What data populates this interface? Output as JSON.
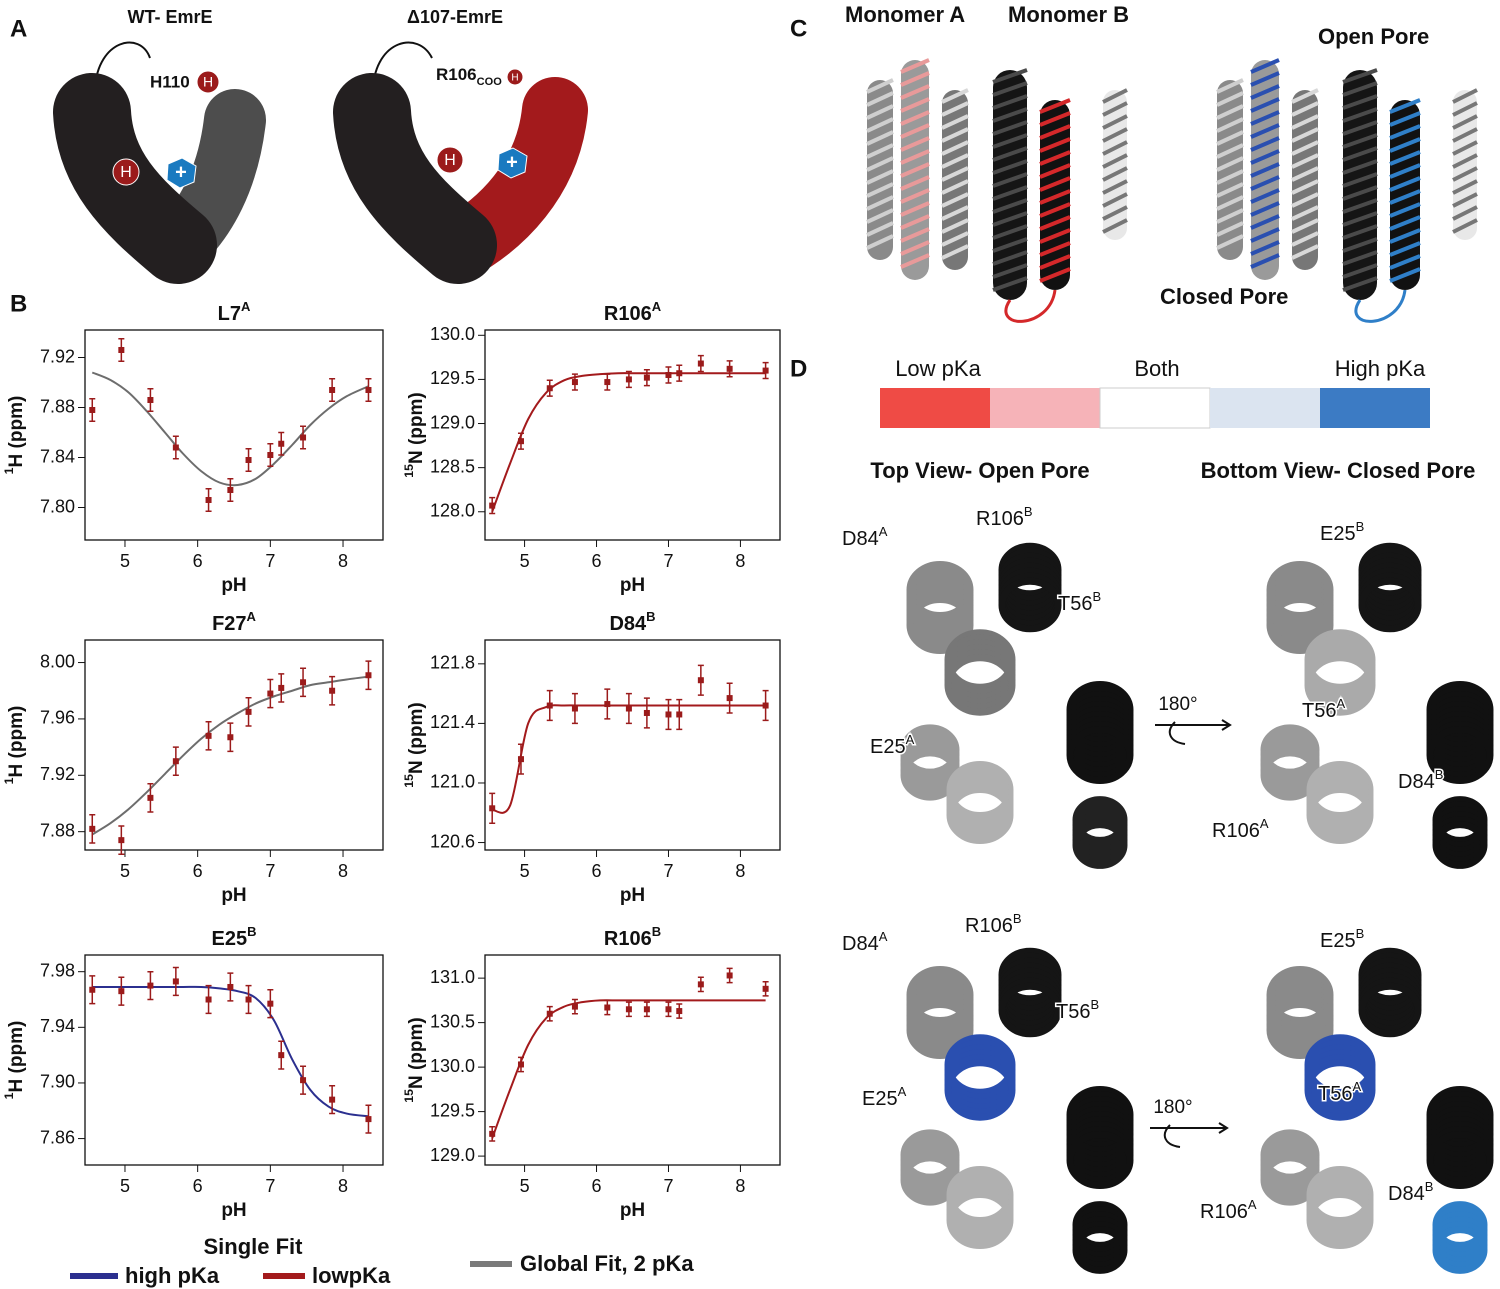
{
  "panel_a": {
    "label": "A",
    "wt": {
      "title": "WT- EmrE",
      "his": "H110",
      "h": "H",
      "drug": "+"
    },
    "mut": {
      "title": "Δ107-EmrE",
      "res": "R106",
      "res_sub": "COO",
      "h": "H",
      "drug": "+"
    }
  },
  "panel_b": {
    "label": "B"
  },
  "panel_c": {
    "label": "C",
    "monomer_a": "Monomer A",
    "monomer_b": "Monomer B",
    "open": "Open Pore",
    "closed": "Closed Pore"
  },
  "panel_d": {
    "label": "D",
    "colorbar": [
      "Low pKa",
      "Both",
      "High pKa"
    ],
    "headers": [
      "Top View- Open Pore",
      "Bottom View- Closed Pore"
    ],
    "rotation": "180°",
    "views": [
      {
        "residues": [
          {
            "name": "D84",
            "sup": "A"
          },
          {
            "name": "R106",
            "sup": "B"
          },
          {
            "name": "T56",
            "sup": "B"
          },
          {
            "name": "E25",
            "sup": "A"
          }
        ]
      },
      {
        "residues": [
          {
            "name": "E25",
            "sup": "B"
          },
          {
            "name": "T56",
            "sup": "A"
          },
          {
            "name": "R106",
            "sup": "A"
          },
          {
            "name": "D84",
            "sup": "B"
          }
        ]
      },
      {
        "residues": [
          {
            "name": "D84",
            "sup": "A"
          },
          {
            "name": "R106",
            "sup": "B"
          },
          {
            "name": "T56",
            "sup": "B"
          },
          {
            "name": "E25",
            "sup": "A"
          }
        ]
      },
      {
        "residues": [
          {
            "name": "E25",
            "sup": "B"
          },
          {
            "name": "T56",
            "sup": "A"
          },
          {
            "name": "R106",
            "sup": "A"
          },
          {
            "name": "D84",
            "sup": "B"
          }
        ]
      }
    ]
  },
  "legend": {
    "title": "Single Fit",
    "items": [
      {
        "name": "high pKa",
        "color": "#2b2f8f"
      },
      {
        "name": "lowpKa",
        "color": "#a31a1c"
      },
      {
        "name": "Global Fit, 2 pKa",
        "color": "#7a7a7a"
      }
    ]
  },
  "chart_data": [
    {
      "type": "scatter",
      "title": "L7",
      "title_sup": "A",
      "xlabel": "pH",
      "ylabel": "H (ppm)",
      "ylabel_sup": "1",
      "color": "#9b1b1b",
      "x": [
        4.55,
        4.95,
        5.35,
        5.7,
        6.15,
        6.45,
        6.7,
        7.0,
        7.15,
        7.45,
        7.85,
        8.35
      ],
      "values": [
        7.878,
        7.926,
        7.886,
        7.848,
        7.806,
        7.814,
        7.838,
        7.842,
        7.851,
        7.856,
        7.894,
        7.894
      ],
      "errors": [
        0.009,
        0.009,
        0.009,
        0.009,
        0.009,
        0.009,
        0.009,
        0.009,
        0.009,
        0.009,
        0.009,
        0.009
      ],
      "fit": {
        "color": "#6d6d6d",
        "x": [
          4.55,
          4.8,
          5.05,
          5.3,
          5.55,
          5.8,
          6.05,
          6.3,
          6.55,
          6.8,
          7.05,
          7.3,
          7.55,
          7.8,
          8.05,
          8.35
        ],
        "values": [
          7.908,
          7.902,
          7.892,
          7.877,
          7.86,
          7.843,
          7.829,
          7.82,
          7.818,
          7.823,
          7.835,
          7.85,
          7.866,
          7.879,
          7.889,
          7.897
        ]
      },
      "xlim": [
        4.45,
        8.55
      ],
      "ylim": [
        7.774,
        7.942
      ],
      "xticks": [
        5,
        6,
        7,
        8
      ],
      "yticks": [
        {
          "value": 7.8,
          "label": "7.80"
        },
        7.84,
        7.88,
        7.92
      ]
    },
    {
      "type": "scatter",
      "title": "R106",
      "title_sup": "A",
      "xlabel": "pH",
      "ylabel": "N (ppm)",
      "ylabel_sup": "15",
      "color": "#9b1b1b",
      "x": [
        4.55,
        4.95,
        5.35,
        5.7,
        6.15,
        6.45,
        6.7,
        7.0,
        7.15,
        7.45,
        7.85,
        8.35
      ],
      "values": [
        128.07,
        128.8,
        129.4,
        129.47,
        129.47,
        129.5,
        129.52,
        129.55,
        129.57,
        129.68,
        129.62,
        129.6
      ],
      "errors": [
        0.09,
        0.09,
        0.09,
        0.09,
        0.09,
        0.09,
        0.09,
        0.09,
        0.09,
        0.09,
        0.09,
        0.09
      ],
      "fit": {
        "color": "#a31a1c",
        "x": [
          4.55,
          4.8,
          5.05,
          5.3,
          5.55,
          5.8,
          6.05,
          6.3,
          6.55,
          6.8,
          7.05,
          7.3,
          7.55,
          7.8,
          8.05,
          8.35
        ],
        "values": [
          128.0,
          128.55,
          129.05,
          129.35,
          129.49,
          129.54,
          129.56,
          129.57,
          129.57,
          129.57,
          129.57,
          129.57,
          129.57,
          129.57,
          129.57,
          129.57
        ]
      },
      "xlim": [
        4.45,
        8.55
      ],
      "ylim": [
        127.68,
        130.06
      ],
      "xticks": [
        5,
        6,
        7,
        8
      ],
      "yticks": [
        {
          "value": 128,
          "label": "128.0"
        },
        128.5,
        {
          "value": 129,
          "label": "129.0"
        },
        129.5,
        {
          "value": 130,
          "label": "130.0"
        }
      ]
    },
    {
      "type": "scatter",
      "title": "F27",
      "title_sup": "A",
      "xlabel": "pH",
      "ylabel": "H (ppm)",
      "ylabel_sup": "1",
      "color": "#9b1b1b",
      "x": [
        4.55,
        4.95,
        5.35,
        5.7,
        6.15,
        6.45,
        6.7,
        7.0,
        7.15,
        7.45,
        7.85,
        8.35
      ],
      "values": [
        7.882,
        7.874,
        7.904,
        7.93,
        7.948,
        7.947,
        7.965,
        7.978,
        7.982,
        7.986,
        7.98,
        7.991
      ],
      "errors": [
        0.01,
        0.01,
        0.01,
        0.01,
        0.01,
        0.01,
        0.01,
        0.01,
        0.01,
        0.01,
        0.01,
        0.01
      ],
      "fit": {
        "color": "#6d6d6d",
        "x": [
          4.55,
          4.8,
          5.05,
          5.3,
          5.55,
          5.8,
          6.05,
          6.3,
          6.55,
          6.8,
          7.05,
          7.3,
          7.55,
          7.8,
          8.05,
          8.35
        ],
        "values": [
          7.878,
          7.886,
          7.896,
          7.908,
          7.921,
          7.934,
          7.946,
          7.956,
          7.964,
          7.971,
          7.976,
          7.98,
          7.984,
          7.986,
          7.988,
          7.99
        ]
      },
      "xlim": [
        4.45,
        8.55
      ],
      "ylim": [
        7.867,
        8.016
      ],
      "xticks": [
        5,
        6,
        7,
        8
      ],
      "yticks": [
        7.88,
        7.92,
        7.96,
        {
          "value": 8,
          "label": "8.00"
        }
      ]
    },
    {
      "type": "scatter",
      "title": "D84",
      "title_sup": "B",
      "xlabel": "pH",
      "ylabel": "N (ppm)",
      "ylabel_sup": "15",
      "color": "#9b1b1b",
      "x": [
        4.55,
        4.95,
        5.35,
        5.7,
        6.15,
        6.45,
        6.7,
        7.0,
        7.15,
        7.45,
        7.85,
        8.35
      ],
      "values": [
        120.83,
        121.16,
        121.52,
        121.5,
        121.53,
        121.5,
        121.47,
        121.46,
        121.46,
        121.69,
        121.57,
        121.52
      ],
      "errors": [
        0.1,
        0.1,
        0.1,
        0.1,
        0.1,
        0.1,
        0.1,
        0.1,
        0.1,
        0.1,
        0.1,
        0.1
      ],
      "fit": {
        "color": "#a31a1c",
        "x": [
          4.55,
          4.8,
          5.05,
          5.3,
          5.55,
          5.8,
          6.05,
          6.3,
          6.55,
          6.8,
          7.05,
          7.3,
          7.55,
          7.8,
          8.05,
          8.35
        ],
        "values": [
          120.82,
          120.85,
          121.4,
          121.51,
          121.52,
          121.52,
          121.52,
          121.52,
          121.52,
          121.52,
          121.52,
          121.52,
          121.52,
          121.52,
          121.52,
          121.52
        ]
      },
      "xlim": [
        4.45,
        8.55
      ],
      "ylim": [
        120.55,
        121.96
      ],
      "xticks": [
        5,
        6,
        7,
        8
      ],
      "yticks": [
        120.6,
        {
          "value": 121,
          "label": "121.0"
        },
        121.4,
        121.8
      ]
    },
    {
      "type": "scatter",
      "title": "E25",
      "title_sup": "B",
      "xlabel": "pH",
      "ylabel": "H (ppm)",
      "ylabel_sup": "1",
      "color": "#9b1b1b",
      "x": [
        4.55,
        4.95,
        5.35,
        5.7,
        6.15,
        6.45,
        6.7,
        7.0,
        7.15,
        7.45,
        7.85,
        8.35
      ],
      "values": [
        7.967,
        7.966,
        7.97,
        7.973,
        7.96,
        7.969,
        7.96,
        7.957,
        7.92,
        7.902,
        7.888,
        7.874
      ],
      "errors": [
        0.01,
        0.01,
        0.01,
        0.01,
        0.01,
        0.01,
        0.01,
        0.01,
        0.01,
        0.01,
        0.01,
        0.01
      ],
      "fit": {
        "color": "#2b2f8f",
        "x": [
          4.55,
          4.8,
          5.05,
          5.3,
          5.55,
          5.8,
          6.05,
          6.3,
          6.55,
          6.8,
          7.05,
          7.3,
          7.55,
          7.8,
          8.05,
          8.35
        ],
        "values": [
          7.969,
          7.969,
          7.969,
          7.969,
          7.969,
          7.969,
          7.969,
          7.968,
          7.966,
          7.961,
          7.945,
          7.917,
          7.895,
          7.883,
          7.878,
          7.876
        ]
      },
      "xlim": [
        4.45,
        8.55
      ],
      "ylim": [
        7.841,
        7.992
      ],
      "xticks": [
        5,
        6,
        7,
        8
      ],
      "yticks": [
        7.86,
        {
          "value": 7.9,
          "label": "7.90"
        },
        7.94,
        7.98
      ]
    },
    {
      "type": "scatter",
      "title": "R106",
      "title_sup": "B",
      "xlabel": "pH",
      "ylabel": "N (ppm)",
      "ylabel_sup": "15",
      "color": "#9b1b1b",
      "x": [
        4.55,
        4.95,
        5.35,
        5.7,
        6.15,
        6.45,
        6.7,
        7.0,
        7.15,
        7.45,
        7.85,
        8.35
      ],
      "values": [
        129.25,
        130.03,
        130.6,
        130.68,
        130.67,
        130.65,
        130.65,
        130.65,
        130.63,
        130.93,
        131.03,
        130.88
      ],
      "errors": [
        0.08,
        0.08,
        0.08,
        0.08,
        0.08,
        0.08,
        0.08,
        0.08,
        0.08,
        0.08,
        0.08,
        0.08
      ],
      "fit": {
        "color": "#a31a1c",
        "x": [
          4.55,
          4.8,
          5.05,
          5.3,
          5.55,
          5.8,
          6.05,
          6.3,
          6.55,
          6.8,
          7.05,
          7.3,
          7.55,
          7.8,
          8.05,
          8.35
        ],
        "values": [
          129.2,
          129.75,
          130.25,
          130.55,
          130.68,
          130.73,
          130.75,
          130.75,
          130.75,
          130.75,
          130.75,
          130.75,
          130.75,
          130.75,
          130.75,
          130.75
        ]
      },
      "xlim": [
        4.45,
        8.55
      ],
      "ylim": [
        128.9,
        131.26
      ],
      "xticks": [
        5,
        6,
        7,
        8
      ],
      "yticks": [
        {
          "value": 129,
          "label": "129.0"
        },
        129.5,
        {
          "value": 130,
          "label": "130.0"
        },
        130.5,
        {
          "value": 131,
          "label": "131.0"
        }
      ]
    }
  ]
}
